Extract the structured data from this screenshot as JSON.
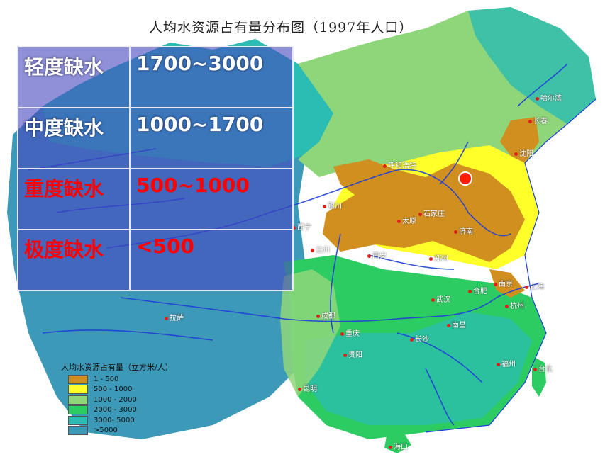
{
  "map": {
    "title": "人均水资源占有量分布图（1997年人口）",
    "colors": {
      "level_1_500": "#d08f1f",
      "level_500_1000": "#ffff2a",
      "level_1000_2000": "#8fd67a",
      "level_2000_3000": "#2dcc62",
      "level_3000_5000": "#2bbcb3",
      "level_gt5000": "#3d99b8",
      "river": "#1f3fd6",
      "city_dot": "#e0201c",
      "highlight_marker": "#ff1e00"
    },
    "cities": [
      {
        "name": "哈尔滨"
      },
      {
        "name": "长春"
      },
      {
        "name": "沈阳"
      },
      {
        "name": "呼和浩特"
      },
      {
        "name": "银川"
      },
      {
        "name": "石家庄"
      },
      {
        "name": "太原"
      },
      {
        "name": "济南"
      },
      {
        "name": "兰州"
      },
      {
        "name": "西宁"
      },
      {
        "name": "西安"
      },
      {
        "name": "郑州"
      },
      {
        "name": "合肥"
      },
      {
        "name": "南京"
      },
      {
        "name": "上海"
      },
      {
        "name": "杭州"
      },
      {
        "name": "武汉"
      },
      {
        "name": "成都"
      },
      {
        "name": "重庆"
      },
      {
        "name": "拉萨"
      },
      {
        "name": "长沙"
      },
      {
        "name": "南昌"
      },
      {
        "name": "贵阳"
      },
      {
        "name": "福州"
      },
      {
        "name": "台北"
      },
      {
        "name": "昆明"
      },
      {
        "name": "海口"
      }
    ]
  },
  "overlay_table": {
    "rows": [
      {
        "level": "轻度缺水",
        "range": "1700~3000"
      },
      {
        "level": "中度缺水",
        "range": "1000~1700"
      },
      {
        "level": "重度缺水",
        "range": "500~1000"
      },
      {
        "level": "极度缺水",
        "range": "<500"
      }
    ]
  },
  "legend": {
    "title": "人均水资源占有量（立方米/人）",
    "items": [
      {
        "label": "1 - 500",
        "color": "#d08f1f"
      },
      {
        "label": "500 - 1000",
        "color": "#ffff2a"
      },
      {
        "label": "1000 - 2000",
        "color": "#8fd67a"
      },
      {
        "label": "2000 - 3000",
        "color": "#2dcc62"
      },
      {
        "label": "3000- 5000",
        "color": "#2bbcb3"
      },
      {
        "label": ">5000",
        "color": "#3d99b8"
      }
    ]
  }
}
